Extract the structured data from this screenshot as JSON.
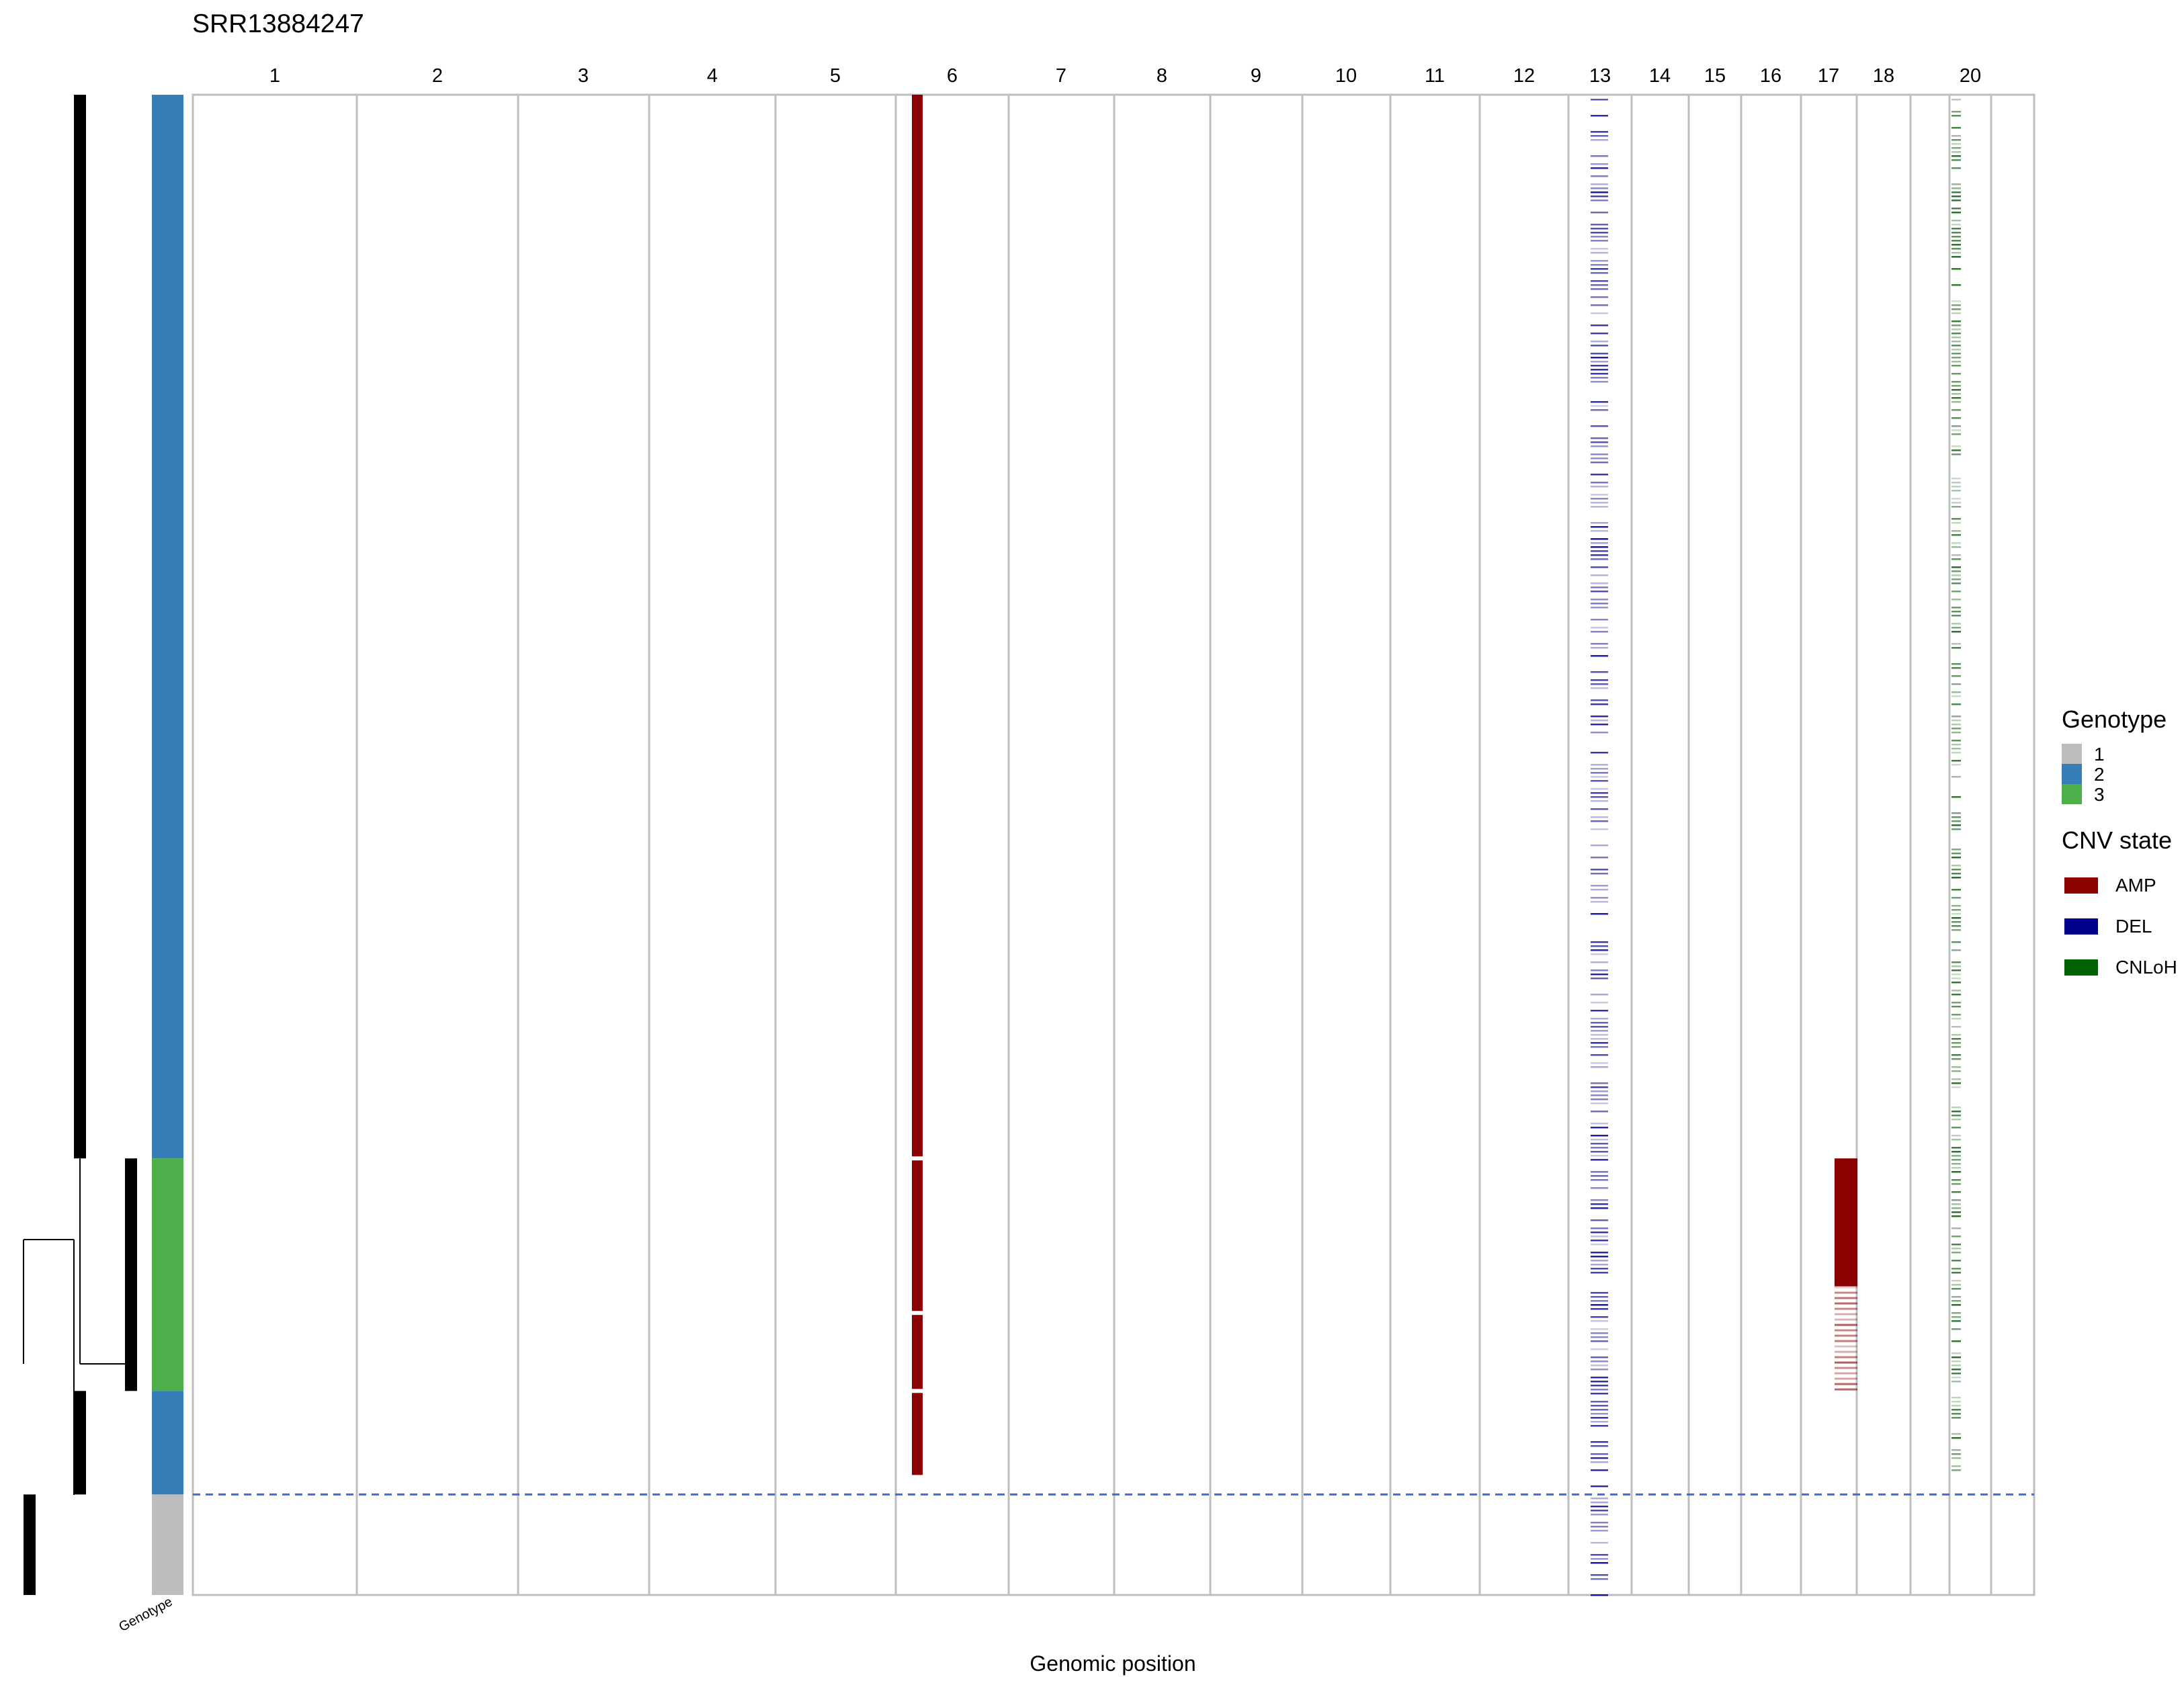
{
  "chart_data": {
    "type": "heatmap",
    "title": "SRR13884247",
    "xlabel": "Genomic position",
    "ylabel": "",
    "genotype_axis_label": "Genotype",
    "chromosomes": [
      "1",
      "2",
      "3",
      "4",
      "5",
      "6",
      "7",
      "8",
      "9",
      "10",
      "11",
      "12",
      "13",
      "14",
      "15",
      "16",
      "17",
      "18",
      "20"
    ],
    "extra_unlabeled_panels": 2,
    "legends": {
      "genotype": {
        "title": "Genotype",
        "items": [
          {
            "label": "1",
            "color": "#BDBDBD"
          },
          {
            "label": "2",
            "color": "#377EB8"
          },
          {
            "label": "3",
            "color": "#4DAF4A"
          }
        ]
      },
      "cnv_state": {
        "title": "CNV state",
        "items": [
          {
            "label": "AMP",
            "color": "#8B0000"
          },
          {
            "label": "DEL",
            "color": "#00008B"
          },
          {
            "label": "CNLoH",
            "color": "#006400"
          }
        ]
      }
    },
    "genotype_blocks": [
      {
        "genotype": "2",
        "start": 0.0,
        "end": 0.709
      },
      {
        "genotype": "3",
        "start": 0.709,
        "end": 0.864
      },
      {
        "genotype": "2",
        "start": 0.864,
        "end": 0.933
      },
      {
        "genotype": "1",
        "start": 0.933,
        "end": 1.0
      }
    ],
    "tumor_normal_boundary": 0.933,
    "cnv_events": [
      {
        "chromosome": "6",
        "state": "AMP",
        "cells": [
          0.0,
          0.92
        ],
        "pattern": "solid"
      },
      {
        "chromosome": "13",
        "state": "DEL",
        "cells": [
          0.0,
          1.0
        ],
        "pattern": "sparse"
      },
      {
        "chromosome": "17",
        "state": "AMP",
        "cells": [
          0.709,
          0.864
        ],
        "pattern": "solid-then-sparse"
      },
      {
        "chromosome": "20",
        "state": "CNLoH",
        "cells": [
          0.0,
          0.92
        ],
        "pattern": "sparse"
      }
    ],
    "grid": false,
    "legend_position": "right"
  }
}
